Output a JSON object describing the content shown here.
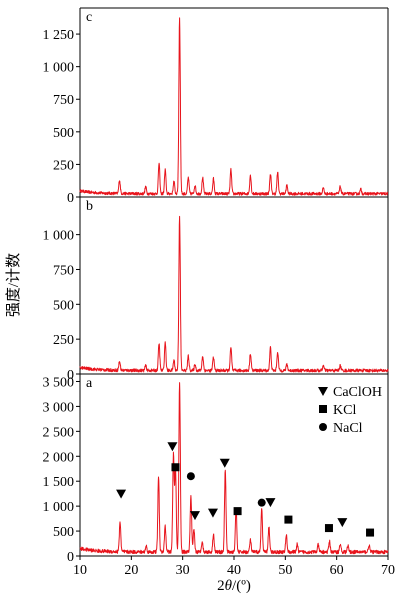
{
  "figure": {
    "ylabel": "强度/计数",
    "xlabel_prefix": "2",
    "xlabel_symbol": "θ",
    "xlabel_suffix": "/(º)"
  },
  "chart_data": {
    "type": "line",
    "x_ticks": [
      10,
      20,
      30,
      40,
      50,
      60,
      70
    ],
    "xlim": [
      10,
      70
    ],
    "grid": false,
    "line_color": "#e8141c",
    "panels": [
      {
        "id": "c",
        "label": "c",
        "ylim": [
          0,
          1450
        ],
        "y_ticks": [
          0,
          250,
          500,
          750,
          1000,
          1250
        ],
        "y_tick_labels": [
          "0",
          "250",
          "500",
          "750",
          "1 000",
          "1 250"
        ],
        "baseline": 25,
        "peaks": [
          {
            "x": 17.7,
            "y": 130
          },
          {
            "x": 22.8,
            "y": 80
          },
          {
            "x": 25.4,
            "y": 260
          },
          {
            "x": 26.6,
            "y": 210
          },
          {
            "x": 28.3,
            "y": 120
          },
          {
            "x": 29.4,
            "y": 1380
          },
          {
            "x": 31.1,
            "y": 150
          },
          {
            "x": 32.4,
            "y": 90
          },
          {
            "x": 33.9,
            "y": 150
          },
          {
            "x": 36.0,
            "y": 140
          },
          {
            "x": 39.4,
            "y": 210
          },
          {
            "x": 43.2,
            "y": 170
          },
          {
            "x": 47.1,
            "y": 180
          },
          {
            "x": 48.5,
            "y": 190
          },
          {
            "x": 50.3,
            "y": 90
          },
          {
            "x": 57.4,
            "y": 70
          },
          {
            "x": 60.7,
            "y": 80
          },
          {
            "x": 64.7,
            "y": 60
          }
        ]
      },
      {
        "id": "b",
        "label": "b",
        "ylim": [
          0,
          1270
        ],
        "y_ticks": [
          0,
          250,
          500,
          750,
          1000
        ],
        "y_tick_labels": [
          "0",
          "250",
          "500",
          "750",
          "1 000"
        ],
        "baseline": 25,
        "peaks": [
          {
            "x": 17.7,
            "y": 90
          },
          {
            "x": 22.8,
            "y": 60
          },
          {
            "x": 25.4,
            "y": 220
          },
          {
            "x": 26.6,
            "y": 230
          },
          {
            "x": 28.3,
            "y": 100
          },
          {
            "x": 29.4,
            "y": 1140
          },
          {
            "x": 31.1,
            "y": 130
          },
          {
            "x": 32.4,
            "y": 70
          },
          {
            "x": 33.9,
            "y": 130
          },
          {
            "x": 36.0,
            "y": 120
          },
          {
            "x": 39.4,
            "y": 190
          },
          {
            "x": 43.2,
            "y": 150
          },
          {
            "x": 47.1,
            "y": 190
          },
          {
            "x": 48.5,
            "y": 160
          },
          {
            "x": 50.3,
            "y": 70
          },
          {
            "x": 57.4,
            "y": 60
          },
          {
            "x": 60.7,
            "y": 60
          }
        ]
      },
      {
        "id": "a",
        "label": "a",
        "ylim": [
          0,
          3650
        ],
        "y_ticks": [
          0,
          500,
          1000,
          1500,
          2000,
          2500,
          3000,
          3500
        ],
        "y_tick_labels": [
          "0",
          "500",
          "1 000",
          "1 500",
          "2 000",
          "2 500",
          "3 000",
          "3 500"
        ],
        "baseline": 80,
        "peaks": [
          {
            "x": 17.8,
            "y": 680
          },
          {
            "x": 22.9,
            "y": 200
          },
          {
            "x": 25.3,
            "y": 1580
          },
          {
            "x": 26.6,
            "y": 600
          },
          {
            "x": 28.2,
            "y": 2050
          },
          {
            "x": 28.6,
            "y": 1800
          },
          {
            "x": 29.4,
            "y": 3500
          },
          {
            "x": 31.6,
            "y": 1200
          },
          {
            "x": 32.2,
            "y": 520
          },
          {
            "x": 33.8,
            "y": 300
          },
          {
            "x": 36.0,
            "y": 450
          },
          {
            "x": 38.3,
            "y": 1750
          },
          {
            "x": 40.4,
            "y": 950
          },
          {
            "x": 43.2,
            "y": 320
          },
          {
            "x": 45.4,
            "y": 950
          },
          {
            "x": 46.8,
            "y": 580
          },
          {
            "x": 50.2,
            "y": 420
          },
          {
            "x": 52.3,
            "y": 230
          },
          {
            "x": 56.4,
            "y": 220
          },
          {
            "x": 58.6,
            "y": 300
          },
          {
            "x": 60.7,
            "y": 240
          },
          {
            "x": 62.2,
            "y": 200
          },
          {
            "x": 66.3,
            "y": 220
          }
        ]
      }
    ],
    "legend": {
      "placement": "top-right of panel a",
      "entries": [
        {
          "name": "CaClOH",
          "marker": "triangle-down"
        },
        {
          "name": "KCl",
          "marker": "square"
        },
        {
          "name": "NaCl",
          "marker": "circle"
        }
      ]
    },
    "annotations": [
      {
        "marker": "triangle-down",
        "x": 18.0,
        "y": 1250
      },
      {
        "marker": "triangle-down",
        "x": 28.0,
        "y": 2200
      },
      {
        "marker": "square",
        "x": 28.6,
        "y": 1780
      },
      {
        "marker": "circle",
        "x": 31.6,
        "y": 1600
      },
      {
        "marker": "triangle-down",
        "x": 32.4,
        "y": 820
      },
      {
        "marker": "triangle-down",
        "x": 35.9,
        "y": 870
      },
      {
        "marker": "triangle-down",
        "x": 38.2,
        "y": 1870
      },
      {
        "marker": "square",
        "x": 40.7,
        "y": 900
      },
      {
        "marker": "circle",
        "x": 45.4,
        "y": 1070
      },
      {
        "marker": "triangle-down",
        "x": 47.1,
        "y": 1080
      },
      {
        "marker": "square",
        "x": 50.6,
        "y": 730
      },
      {
        "marker": "square",
        "x": 58.5,
        "y": 560
      },
      {
        "marker": "triangle-down",
        "x": 61.1,
        "y": 680
      },
      {
        "marker": "square",
        "x": 66.5,
        "y": 470
      }
    ]
  }
}
